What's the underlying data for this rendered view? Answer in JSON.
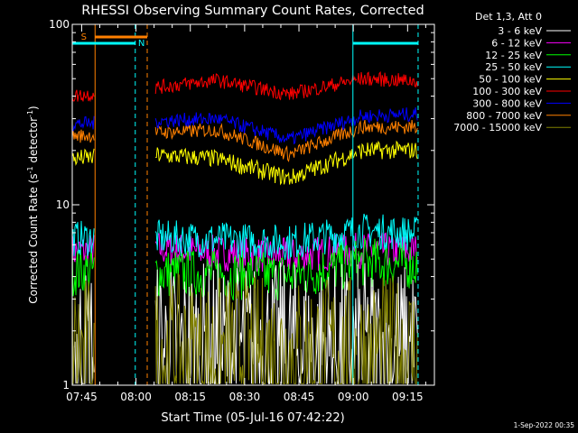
{
  "chart_data": {
    "type": "line",
    "title": "RHESSI Observing Summary Count Rates, Corrected",
    "xlabel": "Start Time (05-Jul-16 07:42:22)",
    "ylabel_main": "Corrected Count Rate (s",
    "ylabel_sup1": "-1",
    "ylabel_mid": " detector",
    "ylabel_sup2": "-1",
    "ylabel_end": ")",
    "y_scale": "log",
    "ylim": [
      1,
      100
    ],
    "xlim_minutes": [
      0,
      100
    ],
    "x_ticks": [
      {
        "label": "07:45",
        "min": 2.6
      },
      {
        "label": "08:00",
        "min": 17.6
      },
      {
        "label": "08:15",
        "min": 32.6
      },
      {
        "label": "08:30",
        "min": 47.6
      },
      {
        "label": "08:45",
        "min": 62.6
      },
      {
        "label": "09:00",
        "min": 77.6
      },
      {
        "label": "09:15",
        "min": 92.6
      }
    ],
    "y_ticks": [
      {
        "label": "1",
        "value": 1
      },
      {
        "label": "10",
        "value": 10
      },
      {
        "label": "100",
        "value": 100
      }
    ],
    "legend_header": "Det 1,3, Att 0",
    "legend_position": "top-right",
    "series": [
      {
        "name": "3 - 6 keV",
        "color": "#ffffff",
        "profile": [
          1.6,
          1.6,
          1.6,
          1.6,
          1.6,
          1.6
        ],
        "noise": 0.22
      },
      {
        "name": "6 - 12 keV",
        "color": "#ff00ff",
        "profile": [
          5.5,
          5.8,
          5.4,
          5.2,
          5.6,
          5.6
        ],
        "noise": 0.1
      },
      {
        "name": "12 - 25 keV",
        "color": "#00ff00",
        "profile": [
          4.3,
          4.2,
          4.1,
          4.0,
          4.8,
          4.6
        ],
        "noise": 0.14
      },
      {
        "name": "25 - 50 keV",
        "color": "#00ffff",
        "profile": [
          6.5,
          6.6,
          6.4,
          6.2,
          7.2,
          6.8
        ],
        "noise": 0.1
      },
      {
        "name": "50 - 100 keV",
        "color": "#ffff00",
        "profile": [
          18,
          19,
          18,
          14,
          20,
          20
        ],
        "noise": 0.05
      },
      {
        "name": "100 - 300 keV",
        "color": "#ff0000",
        "profile": [
          40,
          44,
          49,
          41,
          50,
          48
        ],
        "noise": 0.04
      },
      {
        "name": "300 - 800 keV",
        "color": "#0000ff",
        "profile": [
          28,
          29,
          30,
          23,
          31,
          32
        ],
        "noise": 0.04
      },
      {
        "name": "800 - 7000 keV",
        "color": "#ff8000",
        "profile": [
          24,
          25,
          26,
          19,
          27,
          27
        ],
        "noise": 0.04
      },
      {
        "name": "7000 - 15000 keV",
        "color": "#808000",
        "profile": [
          1.5,
          1.5,
          1.5,
          1.5,
          1.5,
          1.5
        ],
        "noise": 0.2
      }
    ],
    "annotations": [
      {
        "label": "S",
        "color": "#ff8000"
      },
      {
        "label": "N",
        "color": "#00ffff"
      }
    ],
    "footer": "1-Sep-2022 00:35"
  }
}
